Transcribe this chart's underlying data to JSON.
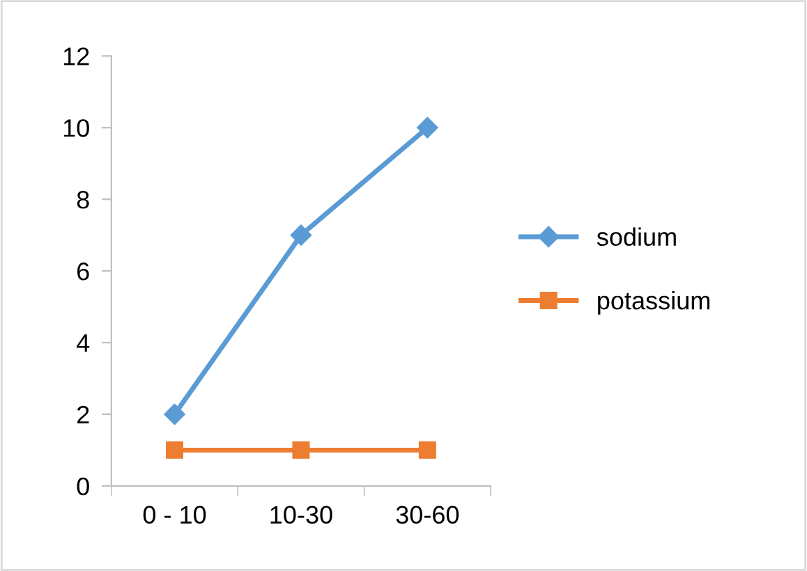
{
  "chart_data": {
    "type": "line",
    "categories": [
      "0 - 10",
      "10-30",
      "30-60"
    ],
    "series": [
      {
        "name": "sodium",
        "color": "#5b9bd5",
        "values": [
          2,
          7,
          10
        ],
        "marker": "diamond"
      },
      {
        "name": "potassium",
        "color": "#ed7d31",
        "values": [
          1,
          1,
          1
        ],
        "marker": "square"
      }
    ],
    "ylim": [
      0,
      12
    ],
    "yticks": [
      0,
      2,
      4,
      6,
      8,
      10,
      12
    ],
    "grid": false,
    "legend": "right"
  }
}
